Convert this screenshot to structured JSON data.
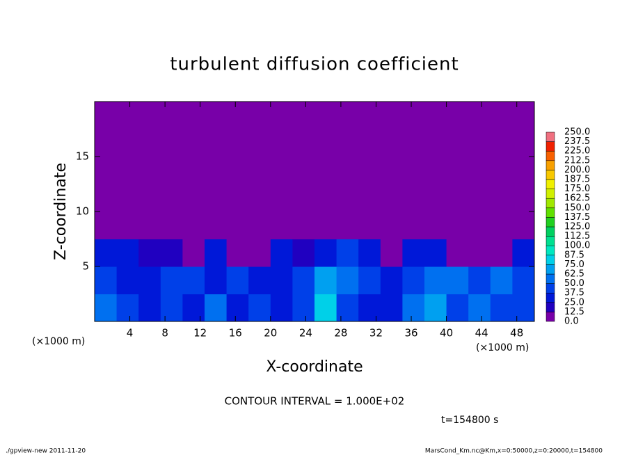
{
  "chart_data": {
    "type": "heatmap",
    "title": "turbulent diffusion coefficient",
    "x_label": "X-coordinate",
    "y_label": "Z-coordinate",
    "x_unit_label": "(×1000 m)",
    "y_unit_label": "(×1000 m)",
    "note": "CONTOUR INTERVAL = 1.000E+02",
    "time_label": "t=154800 s",
    "footer_left": "./gpview-new  2011-11-20",
    "footer_right": "MarsCond_Km.nc@Km,x=0:50000,z=0:20000,t=154800",
    "xlim": [
      0,
      50
    ],
    "ylim": [
      0,
      20
    ],
    "xticks": [
      4,
      8,
      12,
      16,
      20,
      24,
      28,
      32,
      36,
      40,
      44,
      48
    ],
    "yticks": [
      5,
      10,
      15
    ],
    "z": [
      [
        50,
        40,
        30,
        40,
        35,
        50,
        30,
        45,
        30,
        40,
        75,
        40,
        35,
        30,
        50,
        65,
        45,
        50,
        40,
        45
      ],
      [
        45,
        35,
        30,
        40,
        40,
        30,
        45,
        35,
        30,
        40,
        70,
        50,
        40,
        35,
        40,
        60,
        55,
        45,
        50,
        40
      ],
      [
        30,
        25,
        20,
        15,
        10,
        25,
        5,
        10,
        25,
        20,
        25,
        45,
        30,
        5,
        25,
        30,
        10,
        5,
        10,
        25
      ],
      [
        0,
        0,
        0,
        0,
        0,
        0,
        0,
        0,
        0,
        0,
        0,
        0,
        0,
        0,
        0,
        0,
        0,
        0,
        0,
        0
      ],
      [
        0,
        0,
        0,
        0,
        0,
        0,
        0,
        0,
        0,
        0,
        0,
        0,
        0,
        0,
        0,
        0,
        0,
        0,
        0,
        0
      ],
      [
        0,
        0,
        0,
        0,
        0,
        0,
        0,
        0,
        0,
        0,
        0,
        0,
        0,
        0,
        0,
        0,
        0,
        0,
        0,
        0
      ],
      [
        0,
        0,
        0,
        0,
        0,
        0,
        0,
        0,
        0,
        0,
        0,
        0,
        0,
        0,
        0,
        0,
        0,
        0,
        0,
        0
      ],
      [
        0,
        0,
        0,
        0,
        0,
        0,
        0,
        0,
        0,
        0,
        0,
        0,
        0,
        0,
        0,
        0,
        0,
        0,
        0,
        0
      ]
    ],
    "levels": [
      {
        "value": 0,
        "label": "0.0"
      },
      12.5,
      {
        "value": 25,
        "label": "25.0"
      },
      37.5,
      {
        "value": 50,
        "label": "50.0"
      },
      62.5,
      {
        "value": 75,
        "label": "75.0"
      },
      87.5,
      {
        "value": 100,
        "label": "100.0"
      },
      112.5,
      {
        "value": 125,
        "label": "125.0"
      },
      137.5,
      {
        "value": 150,
        "label": "150.0"
      },
      162.5,
      {
        "value": 175,
        "label": "175.0"
      },
      187.5,
      {
        "value": 200,
        "label": "200.0"
      },
      212.5,
      {
        "value": 225,
        "label": "225.0"
      },
      237.5,
      {
        "value": 250,
        "label": "250.0"
      }
    ],
    "colors": [
      "#7800a8",
      "#2000c0",
      "#0018d8",
      "#0040e8",
      "#0070f0",
      "#00a0f0",
      "#00d0e8",
      "#00e8c0",
      "#00e090",
      "#00d060",
      "#20d020",
      "#60e000",
      "#a0e800",
      "#d0f000",
      "#f0f000",
      "#f8c800",
      "#f8a000",
      "#f86000",
      "#f02000",
      "#f07080"
    ]
  }
}
